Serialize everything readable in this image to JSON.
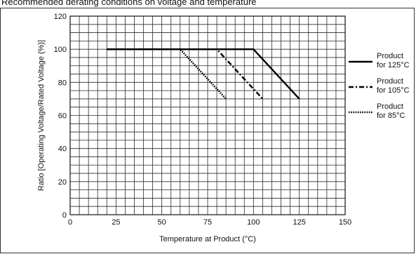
{
  "caption": "Recommended derating conditions on voltage and temperature",
  "chart_data": {
    "type": "line",
    "title": "Recommended derating conditions on voltage and temperature",
    "xlabel": "Temperature at Product (°C)",
    "ylabel": "Ratio [Operating Voltage/Rated Voltage (%)]",
    "xlim": [
      0,
      150
    ],
    "ylim": [
      0,
      120
    ],
    "x_ticks": [
      0,
      25,
      50,
      75,
      100,
      125,
      150
    ],
    "y_ticks": [
      0,
      20,
      40,
      60,
      80,
      100,
      120
    ],
    "grid": true,
    "legend_position": "right",
    "series": [
      {
        "name": "Product for 125°C",
        "legend_lines": [
          "Product",
          "for 125°C"
        ],
        "style": "solid",
        "x": [
          20,
          100,
          125
        ],
        "y": [
          100,
          100,
          70
        ]
      },
      {
        "name": "Product for 105°C",
        "legend_lines": [
          "Product",
          "for 105°C"
        ],
        "style": "dashdot",
        "x": [
          20,
          80,
          105
        ],
        "y": [
          100,
          100,
          70
        ]
      },
      {
        "name": "Product for 85°C",
        "legend_lines": [
          "Product",
          "for 85°C"
        ],
        "style": "dotted",
        "x": [
          20,
          60,
          85
        ],
        "y": [
          100,
          100,
          70
        ]
      }
    ]
  }
}
